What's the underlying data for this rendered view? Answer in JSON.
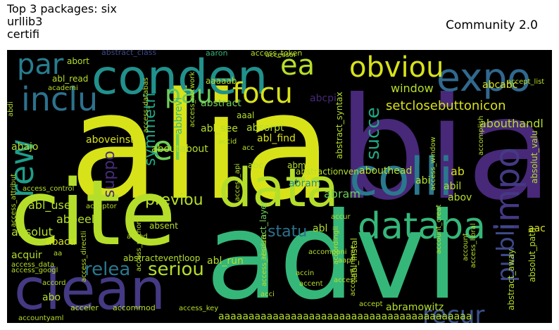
{
  "header": {
    "title_lines": [
      "Top 3 packages: six",
      "urllib3",
      "certifi"
    ],
    "right_label": "Community 2.0"
  },
  "colors": {
    "background": "#000000",
    "palette": "viridis"
  },
  "chart_data": {
    "type": "wordcloud",
    "title": "Top 3 packages: six\nurllib3\ncertifi",
    "annotation": "Community 2.0",
    "words": [
      {
        "text": "alia",
        "color": "#d8e219"
      },
      {
        "text": "bia",
        "color": "#482878"
      },
      {
        "text": "advi",
        "color": "#35b779"
      },
      {
        "text": "cite",
        "color": "#b5de2b"
      },
      {
        "text": "clean",
        "color": "#443983"
      },
      {
        "text": "conden",
        "color": "#21918c"
      },
      {
        "text": "colli",
        "color": "#2a788e"
      },
      {
        "text": "data",
        "color": "#b5de2b"
      },
      {
        "text": "databa",
        "color": "#35b779"
      },
      {
        "text": "expo",
        "color": "#31688e"
      },
      {
        "text": "obviou",
        "color": "#d8e219"
      },
      {
        "text": "focu",
        "color": "#d8e219"
      },
      {
        "text": "inclu",
        "color": "#2c728e"
      },
      {
        "text": "par",
        "color": "#287c8e"
      },
      {
        "text": "ea",
        "color": "#b5de2b"
      },
      {
        "text": "pau",
        "color": "#6ece58"
      },
      {
        "text": "el",
        "color": "#6ece58"
      },
      {
        "text": "rew",
        "color": "#1f9e89"
      },
      {
        "text": "impo",
        "color": "#443983"
      },
      {
        "text": "recur",
        "color": "#3b528b"
      },
      {
        "text": "publi",
        "color": "#3e4989"
      },
      {
        "text": "relea",
        "color": "#2a788e"
      },
      {
        "text": "seriou",
        "color": "#b5de2b"
      },
      {
        "text": "previou",
        "color": "#b5de2b"
      },
      {
        "text": "statu",
        "color": "#2c728e"
      },
      {
        "text": "succe",
        "color": "#22a884"
      },
      {
        "text": "suppo",
        "color": "#472d7b"
      },
      {
        "text": "symmetri",
        "color": "#22a884"
      },
      {
        "text": "window",
        "color": "#b5de2b"
      },
      {
        "text": "setclosebuttonicon",
        "color": "#d8e219"
      },
      {
        "text": "abcabc",
        "color": "#d8e219"
      },
      {
        "text": "abouthandl",
        "color": "#b5de2b"
      },
      {
        "text": "abstract",
        "color": "#6ece58"
      },
      {
        "text": "abl_see",
        "color": "#b5de2b"
      },
      {
        "text": "abl_find",
        "color": "#d8e219"
      },
      {
        "text": "absorpt",
        "color": "#b5de2b"
      },
      {
        "text": "aboutabout",
        "color": "#b5de2b"
      },
      {
        "text": "aboveinstal",
        "color": "#d8e219"
      },
      {
        "text": "abajo",
        "color": "#b5de2b"
      },
      {
        "text": "abram",
        "color": "#6ece58"
      },
      {
        "text": "abram",
        "color": "#21918c"
      },
      {
        "text": "abbrevi",
        "color": "#35b779"
      },
      {
        "text": "abcpi",
        "color": "#482878"
      },
      {
        "text": "abort",
        "color": "#b5de2b"
      },
      {
        "text": "abl_read",
        "color": "#b5de2b"
      },
      {
        "text": "abstract_class",
        "color": "#3e4989"
      },
      {
        "text": "aaron",
        "color": "#35b779"
      },
      {
        "text": "access_token",
        "color": "#b5de2b"
      },
      {
        "text": "aaaaab",
        "color": "#b5de2b"
      },
      {
        "text": "aaal",
        "color": "#b5de2b"
      },
      {
        "text": "abm",
        "color": "#b5de2b"
      },
      {
        "text": "abc",
        "color": "#b5de2b"
      },
      {
        "text": "abi",
        "color": "#b5de2b"
      },
      {
        "text": "ab",
        "color": "#d8e219"
      },
      {
        "text": "abil",
        "color": "#b5de2b"
      },
      {
        "text": "abov",
        "color": "#b5de2b"
      },
      {
        "text": "abouthead",
        "color": "#b5de2b"
      },
      {
        "text": "abstractionven",
        "color": "#b5de2b"
      },
      {
        "text": "abl_use",
        "color": "#b5de2b"
      },
      {
        "text": "abbeel",
        "color": "#b5de2b"
      },
      {
        "text": "absolut",
        "color": "#b5de2b"
      },
      {
        "text": "absent",
        "color": "#b5de2b"
      },
      {
        "text": "abl",
        "color": "#b5de2b"
      },
      {
        "text": "abacu",
        "color": "#d8e219"
      },
      {
        "text": "abl_run",
        "color": "#b5de2b"
      },
      {
        "text": "aac",
        "color": "#d8e219"
      },
      {
        "text": "abo",
        "color": "#b5de2b"
      },
      {
        "text": "acquir",
        "color": "#b5de2b"
      },
      {
        "text": "abl_instal",
        "color": "#b5de2b"
      },
      {
        "text": "abramowitz",
        "color": "#b5de2b"
      },
      {
        "text": "aaaaaaaaaaaaaaaaaaaaaaaaaaaaaaaaaaaaaaaaaa",
        "color": "#b5de2b"
      },
      {
        "text": "abstract_syntax",
        "color": "#b5de2b"
      },
      {
        "text": "abstract_layer",
        "color": "#6ece58"
      },
      {
        "text": "absolut_valu",
        "color": "#b5de2b"
      },
      {
        "text": "absolut_path",
        "color": "#b5de2b"
      },
      {
        "text": "abstract_away",
        "color": "#b5de2b"
      },
      {
        "text": "abstracteventloop",
        "color": "#b5de2b"
      },
      {
        "text": "access_control",
        "color": "#b5de2b"
      },
      {
        "text": "access_attribut",
        "color": "#b5de2b"
      },
      {
        "text": "access_googl",
        "color": "#b5de2b"
      },
      {
        "text": "access_data",
        "color": "#b5de2b"
      },
      {
        "text": "access_python",
        "color": "#b5de2b"
      },
      {
        "text": "access_resourc",
        "color": "#b5de2b"
      },
      {
        "text": "access_network",
        "color": "#b5de2b"
      },
      {
        "text": "access_databas",
        "color": "#b5de2b"
      },
      {
        "text": "access_directli",
        "color": "#b5de2b"
      },
      {
        "text": "access_api",
        "color": "#b5de2b"
      },
      {
        "text": "access_key",
        "color": "#b5de2b"
      },
      {
        "text": "access",
        "color": "#b5de2b"
      },
      {
        "text": "access_libral",
        "color": "#b5de2b"
      },
      {
        "text": "access_window",
        "color": "#b5de2b"
      },
      {
        "text": "account_name",
        "color": "#b5de2b"
      },
      {
        "text": "account_creat",
        "color": "#b5de2b"
      },
      {
        "text": "account",
        "color": "#b5de2b"
      },
      {
        "text": "accommod",
        "color": "#b5de2b"
      },
      {
        "text": "acceler",
        "color": "#b5de2b"
      },
      {
        "text": "accord",
        "color": "#b5de2b"
      },
      {
        "text": "accordingli",
        "color": "#b5de2b"
      },
      {
        "text": "accompani",
        "color": "#b5de2b"
      },
      {
        "text": "accent",
        "color": "#b5de2b"
      },
      {
        "text": "accin",
        "color": "#b5de2b"
      },
      {
        "text": "acci",
        "color": "#b5de2b"
      },
      {
        "text": "aapl",
        "color": "#b5de2b"
      },
      {
        "text": "acceptor",
        "color": "#b5de2b"
      },
      {
        "text": "acced",
        "color": "#b5de2b"
      },
      {
        "text": "accid",
        "color": "#b5de2b"
      },
      {
        "text": "accessor",
        "color": "#b5de2b"
      },
      {
        "text": "acc",
        "color": "#b5de2b"
      },
      {
        "text": "abdi",
        "color": "#b5de2b"
      },
      {
        "text": "academi",
        "color": "#b5de2b"
      },
      {
        "text": "accept_list",
        "color": "#b5de2b"
      },
      {
        "text": "accomplish",
        "color": "#b5de2b"
      },
      {
        "text": "aa",
        "color": "#b5de2b"
      },
      {
        "text": "accur",
        "color": "#b5de2b"
      },
      {
        "text": "accept",
        "color": "#b5de2b"
      },
      {
        "text": "accountyaml",
        "color": "#b5de2b"
      }
    ]
  }
}
